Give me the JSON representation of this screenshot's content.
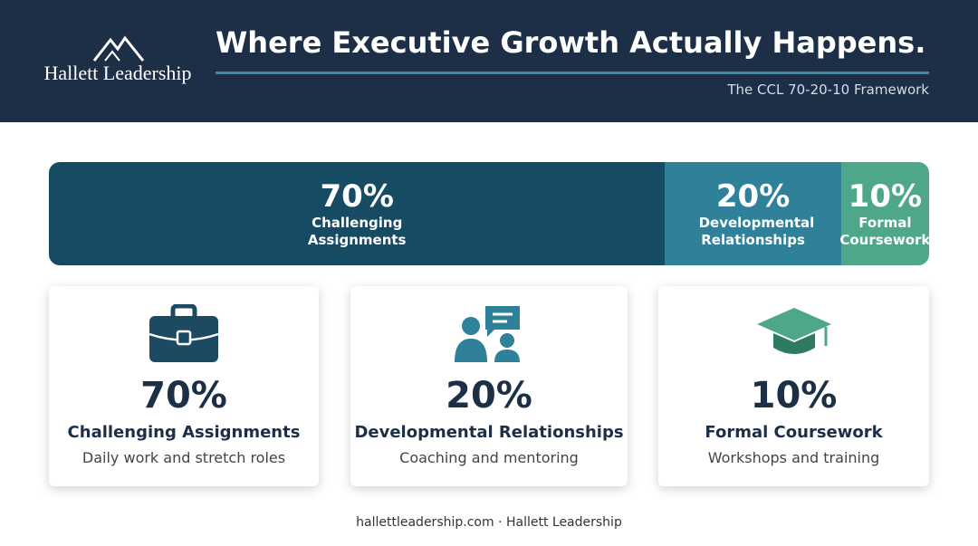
{
  "header": {
    "brand": "Hallett Leadership",
    "title": "Where Executive Growth Actually Happens.",
    "subtitle": "The CCL 70-20-10 Framework"
  },
  "chart_data": {
    "type": "stacked-bar",
    "series": [
      {
        "name": "Challenging Assignments",
        "color": "#174a63",
        "values": [
          70
        ],
        "value_labels": [
          "70%"
        ]
      },
      {
        "name": "Developmental Relationships",
        "color": "#2f8099",
        "values": [
          20
        ],
        "value_labels": [
          "20%"
        ]
      },
      {
        "name": "Formal Coursework",
        "color": "#4ea68b",
        "values": [
          10
        ],
        "value_labels": [
          "10%"
        ]
      }
    ]
  },
  "cards": [
    {
      "description": "Daily work and stretch roles"
    },
    {
      "description": "Coaching and mentoring"
    },
    {
      "description": "Workshops and training"
    }
  ],
  "footer": "hallettleadership.com · Hallett Leadership"
}
